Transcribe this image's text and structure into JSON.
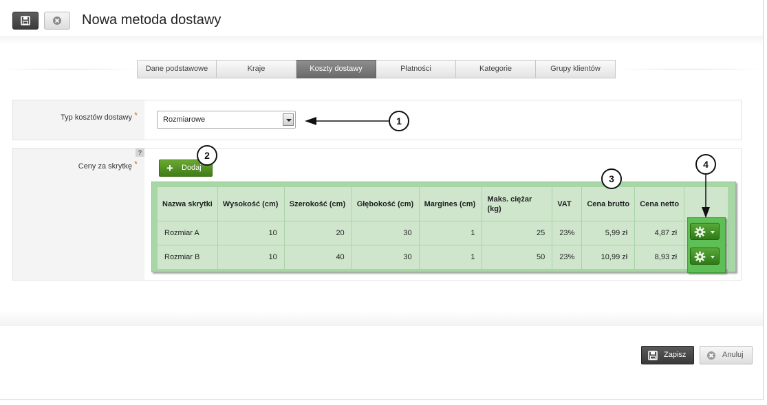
{
  "page": {
    "title": "Nowa metoda dostawy"
  },
  "tabs": [
    {
      "label": "Dane podstawowe"
    },
    {
      "label": "Kraje"
    },
    {
      "label": "Koszty dostawy",
      "active": true
    },
    {
      "label": "Płatności"
    },
    {
      "label": "Kategorie"
    },
    {
      "label": "Grupy klientów"
    }
  ],
  "cost_type": {
    "label": "Typ kosztów dostawy",
    "required_mark": "*",
    "value": "Rozmiarowe"
  },
  "prices": {
    "label": "Ceny za skrytkę",
    "required_mark": "*",
    "help": "?",
    "add_label": "Dodaj",
    "columns": [
      "Nazwa skrytki",
      "Wysokość (cm)",
      "Szerokość (cm)",
      "Głębokość (cm)",
      "Margines (cm)",
      "Maks. ciężar (kg)",
      "VAT",
      "Cena brutto",
      "Cena netto"
    ],
    "rows": [
      [
        "Rozmiar A",
        "10",
        "20",
        "30",
        "1",
        "25",
        "23%",
        "5,99 zł",
        "4,87 zł"
      ],
      [
        "Rozmiar B",
        "10",
        "40",
        "30",
        "1",
        "50",
        "23%",
        "10,99 zł",
        "8,93 zł"
      ]
    ]
  },
  "callouts": [
    "1",
    "2",
    "3",
    "4"
  ],
  "footer": {
    "save_label": "Zapisz",
    "cancel_label": "Anuluj"
  },
  "colors": {
    "accent_green": "#4e9a26",
    "active_tab": "#7a7a7a",
    "required": "#d9781f"
  },
  "icons": {
    "header_save": "floppy-disk-icon",
    "header_cancel": "cancel-circle-icon",
    "add": "plus-icon",
    "row_action": "gear-icon"
  }
}
